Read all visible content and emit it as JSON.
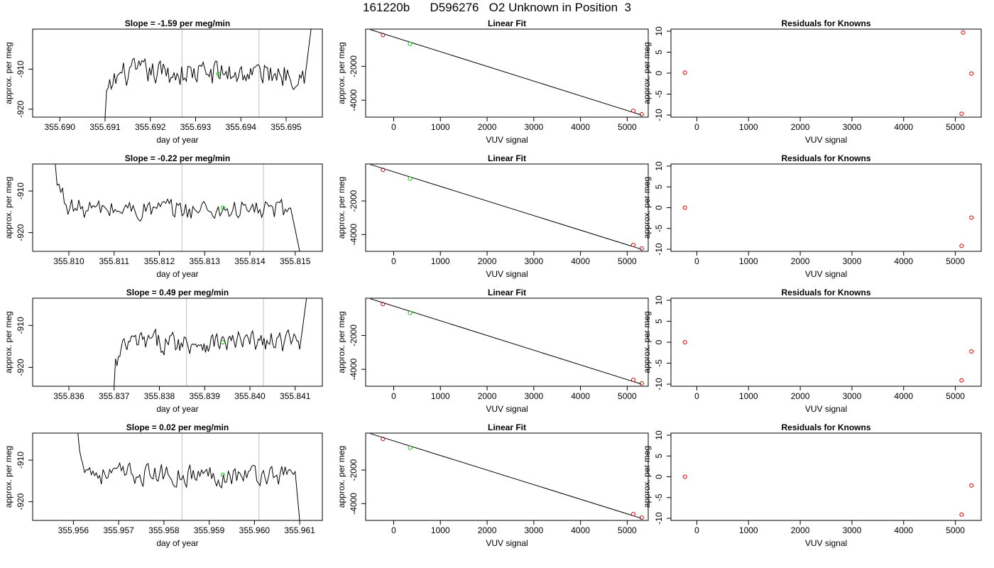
{
  "figure_title": "161220b      D596276   O2 Unknown in Position  3",
  "colors": {
    "trace": "#000000",
    "marker_green": "#00cc00",
    "known_red": "#cc0000",
    "vline": "#bebebe",
    "axis": "#000000"
  },
  "chart_data": [
    {
      "type": "line",
      "panel": "timeseries",
      "row": 1,
      "title": "Slope =  -1.59  per meg/min",
      "xlabel": "day of year",
      "ylabel": "approx. per meg",
      "xlim": [
        355.6894,
        355.6958
      ],
      "ylim": [
        -922,
        -900
      ],
      "xticks": [
        355.69,
        355.691,
        355.692,
        355.693,
        355.694,
        355.695
      ],
      "xtick_labels": [
        "355.690",
        "355.691",
        "355.692",
        "355.693",
        "355.694",
        "355.695"
      ],
      "yticks": [
        -920,
        -910
      ],
      "ytick_labels": [
        "-920",
        "-910"
      ],
      "vlines": [
        355.6927,
        355.6944
      ],
      "marker": {
        "x": 355.6935,
        "y": -911.2
      },
      "start_x": 355.691,
      "rise_x": 355.69555,
      "rise_y": -900,
      "x_end": 355.6954,
      "level": -911,
      "offset_start": -922,
      "jitter": 5
    },
    {
      "type": "scatter",
      "panel": "linear_fit",
      "row": 1,
      "title": "Linear Fit",
      "xlabel": "VUV signal",
      "ylabel": "approx. per meg",
      "xlim": [
        -600,
        5450
      ],
      "ylim": [
        -5000,
        200
      ],
      "xticks": [
        0,
        1000,
        2000,
        3000,
        4000,
        5000
      ],
      "xtick_labels": [
        "0",
        "1000",
        "2000",
        "3000",
        "4000",
        "5000"
      ],
      "yticks": [
        -4000,
        -2000
      ],
      "ytick_labels": [
        "-4000",
        "-2000"
      ],
      "line": [
        [
          -500,
          170
        ],
        [
          5300,
          -4870
        ]
      ],
      "known_points": [
        [
          -230,
          -150
        ],
        [
          5130,
          -4620
        ],
        [
          5310,
          -4830
        ]
      ],
      "unknown_point": [
        350,
        -670
      ]
    },
    {
      "type": "scatter",
      "panel": "residuals",
      "row": 1,
      "title": "Residuals for Knowns",
      "xlabel": "VUV signal",
      "ylabel": "approx. per meg",
      "xlim": [
        -500,
        5500
      ],
      "ylim": [
        -10.5,
        10.5
      ],
      "xticks": [
        0,
        1000,
        2000,
        3000,
        4000,
        5000
      ],
      "xtick_labels": [
        "0",
        "1000",
        "2000",
        "3000",
        "4000",
        "5000"
      ],
      "yticks": [
        -10,
        -5,
        0,
        5,
        10
      ],
      "ytick_labels": [
        "-10",
        "-5",
        "0",
        "5",
        "10"
      ],
      "points": [
        [
          -230,
          0.1
        ],
        [
          5150,
          9.7
        ],
        [
          5310,
          -0.1
        ],
        [
          5120,
          -9.7
        ]
      ]
    },
    {
      "type": "line",
      "panel": "timeseries",
      "row": 2,
      "title": "Slope =  -0.22  per meg/min",
      "xlabel": "day of year",
      "ylabel": "approx. per meg",
      "xlim": [
        355.8092,
        355.8156
      ],
      "ylim": [
        -924.5,
        -903.5
      ],
      "xticks": [
        355.81,
        355.811,
        355.812,
        355.813,
        355.814,
        355.815
      ],
      "xtick_labels": [
        "355.810",
        "355.811",
        "355.812",
        "355.813",
        "355.814",
        "355.815"
      ],
      "yticks": [
        -920,
        -910
      ],
      "ytick_labels": [
        "-920",
        "-910"
      ],
      "vlines": [
        355.8125,
        355.8143
      ],
      "marker": {
        "x": 355.8134,
        "y": -914
      },
      "start_x": 355.8097,
      "start_y": -903.5,
      "drop_x": 355.8151,
      "drop_y": -924.5,
      "x_end": 355.8149,
      "level": -914.5,
      "offset_start": -904,
      "jitter": 4
    },
    {
      "type": "scatter",
      "panel": "linear_fit",
      "row": 2,
      "title": "Linear Fit",
      "xlabel": "VUV signal",
      "ylabel": "approx. per meg",
      "xlim": [
        -600,
        5450
      ],
      "ylim": [
        -5000,
        200
      ],
      "xticks": [
        0,
        1000,
        2000,
        3000,
        4000,
        5000
      ],
      "xtick_labels": [
        "0",
        "1000",
        "2000",
        "3000",
        "4000",
        "5000"
      ],
      "yticks": [
        -4000,
        -2000
      ],
      "ytick_labels": [
        "-4000",
        "-2000"
      ],
      "line": [
        [
          -500,
          170
        ],
        [
          5300,
          -4870
        ]
      ],
      "known_points": [
        [
          -230,
          -150
        ],
        [
          5130,
          -4620
        ],
        [
          5310,
          -4830
        ]
      ],
      "unknown_point": [
        350,
        -670
      ]
    },
    {
      "type": "scatter",
      "panel": "residuals",
      "row": 2,
      "title": "Residuals for Knowns",
      "xlabel": "VUV signal",
      "ylabel": "approx. per meg",
      "xlim": [
        -500,
        5500
      ],
      "ylim": [
        -10.5,
        10.5
      ],
      "xticks": [
        0,
        1000,
        2000,
        3000,
        4000,
        5000
      ],
      "xtick_labels": [
        "0",
        "1000",
        "2000",
        "3000",
        "4000",
        "5000"
      ],
      "yticks": [
        -10,
        -5,
        0,
        5,
        10
      ],
      "ytick_labels": [
        "-10",
        "-5",
        "0",
        "5",
        "10"
      ],
      "points": [
        [
          -230,
          0
        ],
        [
          5310,
          -2.4
        ],
        [
          5120,
          -9.2
        ]
      ]
    },
    {
      "type": "line",
      "panel": "timeseries",
      "row": 3,
      "title": "Slope =  0.49  per meg/min",
      "xlabel": "day of year",
      "ylabel": "approx. per meg",
      "xlim": [
        355.8352,
        355.8416
      ],
      "ylim": [
        -924.5,
        -903.5
      ],
      "xticks": [
        355.836,
        355.837,
        355.838,
        355.839,
        355.84,
        355.841
      ],
      "xtick_labels": [
        "355.836",
        "355.837",
        "355.838",
        "355.839",
        "355.840",
        "355.841"
      ],
      "yticks": [
        -920,
        -910
      ],
      "ytick_labels": [
        "-920",
        "-910"
      ],
      "vlines": [
        355.8386,
        355.8403
      ],
      "marker": {
        "x": 355.8394,
        "y": -914
      },
      "start_x": 355.837,
      "rise_x": 355.84125,
      "rise_y": -903.5,
      "x_end": 355.8411,
      "level": -914,
      "offset_start": -924.5,
      "jitter": 4
    },
    {
      "type": "scatter",
      "panel": "linear_fit",
      "row": 3,
      "title": "Linear Fit",
      "xlabel": "VUV signal",
      "ylabel": "approx. per meg",
      "xlim": [
        -600,
        5450
      ],
      "ylim": [
        -5000,
        200
      ],
      "xticks": [
        0,
        1000,
        2000,
        3000,
        4000,
        5000
      ],
      "xtick_labels": [
        "0",
        "1000",
        "2000",
        "3000",
        "4000",
        "5000"
      ],
      "yticks": [
        -4000,
        -2000
      ],
      "ytick_labels": [
        "-4000",
        "-2000"
      ],
      "line": [
        [
          -500,
          170
        ],
        [
          5300,
          -4870
        ]
      ],
      "known_points": [
        [
          -230,
          -150
        ],
        [
          5130,
          -4620
        ],
        [
          5310,
          -4830
        ]
      ],
      "unknown_point": [
        350,
        -670
      ]
    },
    {
      "type": "scatter",
      "panel": "residuals",
      "row": 3,
      "title": "Residuals for Knowns",
      "xlabel": "VUV signal",
      "ylabel": "approx. per meg",
      "xlim": [
        -500,
        5500
      ],
      "ylim": [
        -10.5,
        10.5
      ],
      "xticks": [
        0,
        1000,
        2000,
        3000,
        4000,
        5000
      ],
      "xtick_labels": [
        "0",
        "1000",
        "2000",
        "3000",
        "4000",
        "5000"
      ],
      "yticks": [
        -10,
        -5,
        0,
        5,
        10
      ],
      "ytick_labels": [
        "-10",
        "-5",
        "0",
        "5",
        "10"
      ],
      "points": [
        [
          -230,
          0
        ],
        [
          5310,
          -2.2
        ],
        [
          5120,
          -9.1
        ]
      ]
    },
    {
      "type": "line",
      "panel": "timeseries",
      "row": 4,
      "title": "Slope =  0.02  per meg/min",
      "xlabel": "day of year",
      "ylabel": "approx. per meg",
      "xlim": [
        355.9551,
        355.9615
      ],
      "ylim": [
        -924.5,
        -903.5
      ],
      "xticks": [
        355.956,
        355.957,
        355.958,
        355.959,
        355.96,
        355.961
      ],
      "xtick_labels": [
        "355.956",
        "355.957",
        "355.958",
        "355.959",
        "355.960",
        "355.961"
      ],
      "yticks": [
        -920,
        -910
      ],
      "ytick_labels": [
        "-920",
        "-910"
      ],
      "vlines": [
        355.9584,
        355.9601
      ],
      "marker": {
        "x": 355.9593,
        "y": -913.5
      },
      "start_x": 355.9561,
      "start_y": -903.5,
      "drop_x": 355.961,
      "drop_y": -924.5,
      "x_end": 355.9609,
      "level": -913.5,
      "offset_start": -904,
      "jitter": 4
    },
    {
      "type": "scatter",
      "panel": "linear_fit",
      "row": 4,
      "title": "Linear Fit",
      "xlabel": "VUV signal",
      "ylabel": "approx. per meg",
      "xlim": [
        -600,
        5450
      ],
      "ylim": [
        -5000,
        200
      ],
      "xticks": [
        0,
        1000,
        2000,
        3000,
        4000,
        5000
      ],
      "xtick_labels": [
        "0",
        "1000",
        "2000",
        "3000",
        "4000",
        "5000"
      ],
      "yticks": [
        -4000,
        -2000
      ],
      "ytick_labels": [
        "-4000",
        "-2000"
      ],
      "line": [
        [
          -500,
          170
        ],
        [
          5300,
          -4870
        ]
      ],
      "known_points": [
        [
          -230,
          -150
        ],
        [
          5130,
          -4620
        ],
        [
          5310,
          -4830
        ]
      ],
      "unknown_point": [
        350,
        -670
      ]
    },
    {
      "type": "scatter",
      "panel": "residuals",
      "row": 4,
      "title": "Residuals for Knowns",
      "xlabel": "VUV signal",
      "ylabel": "approx. per meg",
      "xlim": [
        -500,
        5500
      ],
      "ylim": [
        -10.5,
        10.5
      ],
      "xticks": [
        0,
        1000,
        2000,
        3000,
        4000,
        5000
      ],
      "xtick_labels": [
        "0",
        "1000",
        "2000",
        "3000",
        "4000",
        "5000"
      ],
      "yticks": [
        -10,
        -5,
        0,
        5,
        10
      ],
      "ytick_labels": [
        "-10",
        "-5",
        "0",
        "5",
        "10"
      ],
      "points": [
        [
          -230,
          0
        ],
        [
          5310,
          -2.1
        ],
        [
          5120,
          -9.1
        ]
      ]
    }
  ]
}
